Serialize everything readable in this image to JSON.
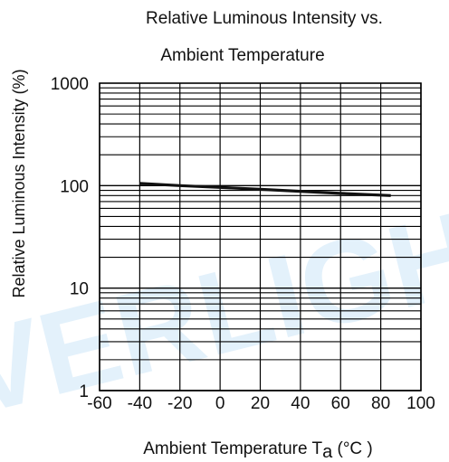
{
  "chart_data": {
    "type": "line",
    "title_lines": [
      "Relative Luminous Intensity vs.",
      "Ambient Temperature"
    ],
    "xlabel": "Ambient Temperature T",
    "xlabel_subscript": "a",
    "xlabel_unit": " (°C )",
    "ylabel": "Relative Luminous Intensity  (%)",
    "x_ticks": [
      "-60",
      "-40",
      "-20",
      "0",
      "20",
      "40",
      "60",
      "80",
      "100"
    ],
    "y_ticks": [
      "1",
      "10",
      "100",
      "1000"
    ],
    "xlim": [
      -60,
      100
    ],
    "ylim": [
      1,
      1000
    ],
    "y_scale": "log",
    "grid": true,
    "series": [
      {
        "x": [
          -40,
          -20,
          0,
          20,
          40,
          60,
          85
        ],
        "y": [
          105,
          100,
          96,
          92,
          88,
          84,
          80
        ]
      }
    ],
    "watermark": "EVERLIGHT"
  }
}
